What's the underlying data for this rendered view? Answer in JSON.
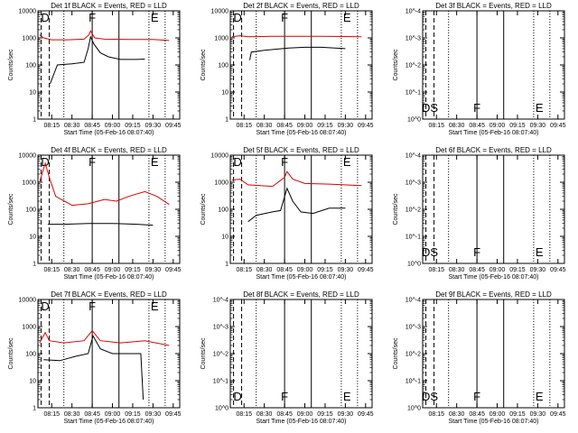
{
  "ylabel": "Counts/sec",
  "xlabel": "Start Time (05-Feb-16 08:07:40)",
  "x_ticks": [
    "08:15",
    "08:30",
    "08:45",
    "09:00",
    "09:15",
    "09:30",
    "09:45"
  ],
  "colors": {
    "events": "#000000",
    "lld": "#dd0000",
    "axis": "#000000"
  },
  "chart_data": [
    {
      "type": "line",
      "title": "Det 1f BLACK = Events, RED = LLD",
      "yticks": [
        "1",
        "10",
        "100",
        "1000",
        "10000"
      ],
      "ylim": [
        1,
        10000
      ],
      "yscale": "log",
      "flags": [
        "D",
        "F",
        "E"
      ],
      "events": [
        [
          8.23,
          20
        ],
        [
          8.32,
          100
        ],
        [
          8.5,
          110
        ],
        [
          8.65,
          125
        ],
        [
          8.7,
          400
        ],
        [
          8.73,
          1100
        ],
        [
          8.77,
          600
        ],
        [
          8.85,
          280
        ],
        [
          8.95,
          200
        ],
        [
          9.1,
          160
        ],
        [
          9.3,
          160
        ],
        [
          9.4,
          165
        ]
      ],
      "lld": [
        [
          8.1,
          1300
        ],
        [
          8.15,
          1000
        ],
        [
          8.25,
          850
        ],
        [
          8.45,
          850
        ],
        [
          8.65,
          900
        ],
        [
          8.71,
          1300
        ],
        [
          8.73,
          1800
        ],
        [
          8.78,
          1000
        ],
        [
          8.9,
          900
        ],
        [
          9.2,
          880
        ],
        [
          9.5,
          880
        ],
        [
          9.7,
          800
        ]
      ]
    },
    {
      "type": "line",
      "title": "Det 2f BLACK = Events, RED = LLD",
      "yticks": [
        "1",
        "10",
        "100",
        "1000",
        "10000"
      ],
      "ylim": [
        1,
        10000
      ],
      "yscale": "log",
      "flags": [
        "D",
        "F",
        "E"
      ],
      "events": [
        [
          8.32,
          150
        ],
        [
          8.34,
          300
        ],
        [
          8.5,
          350
        ],
        [
          8.8,
          420
        ],
        [
          9.0,
          450
        ],
        [
          9.2,
          450
        ],
        [
          9.5,
          400
        ]
      ],
      "lld": [
        [
          8.1,
          1100
        ],
        [
          8.2,
          1200
        ],
        [
          8.3,
          1100
        ],
        [
          8.6,
          1150
        ],
        [
          8.9,
          1150
        ],
        [
          9.2,
          1150
        ],
        [
          9.7,
          1100
        ]
      ]
    },
    {
      "type": "line",
      "title": "Det 3f BLACK = Events, RED = LLD",
      "yticks": [
        "10^0",
        "10^-1",
        "10^-2",
        "10^-3",
        "10^-4"
      ],
      "ylim": [
        0.0001,
        1
      ],
      "yscale": "log",
      "flags": [
        "DS",
        "F",
        "E"
      ],
      "events": [],
      "lld": []
    },
    {
      "type": "line",
      "title": "Det 4f BLACK = Events, RED = LLD",
      "yticks": [
        "1",
        "10",
        "100",
        "1000",
        "10000"
      ],
      "ylim": [
        1,
        10000
      ],
      "yscale": "log",
      "flags": [
        "D",
        "F",
        "E"
      ],
      "events": [
        [
          8.2,
          28
        ],
        [
          8.4,
          28
        ],
        [
          8.7,
          30
        ],
        [
          9.0,
          30
        ],
        [
          9.3,
          28
        ],
        [
          9.5,
          26
        ]
      ],
      "lld": [
        [
          8.1,
          1000
        ],
        [
          8.17,
          5000
        ],
        [
          8.22,
          1500
        ],
        [
          8.3,
          300
        ],
        [
          8.5,
          140
        ],
        [
          8.7,
          160
        ],
        [
          8.9,
          230
        ],
        [
          9.05,
          200
        ],
        [
          9.2,
          300
        ],
        [
          9.4,
          450
        ],
        [
          9.55,
          300
        ],
        [
          9.7,
          150
        ]
      ]
    },
    {
      "type": "line",
      "title": "Det 5f BLACK = Events, RED = LLD",
      "yticks": [
        "1",
        "10",
        "100",
        "1000",
        "10000"
      ],
      "ylim": [
        1,
        10000
      ],
      "yscale": "log",
      "flags": [
        "D",
        "F",
        "E"
      ],
      "events": [
        [
          8.3,
          35
        ],
        [
          8.4,
          60
        ],
        [
          8.6,
          80
        ],
        [
          8.7,
          90
        ],
        [
          8.78,
          600
        ],
        [
          8.85,
          200
        ],
        [
          8.95,
          80
        ],
        [
          9.1,
          70
        ],
        [
          9.3,
          110
        ],
        [
          9.5,
          110
        ]
      ],
      "lld": [
        [
          8.1,
          1200
        ],
        [
          8.2,
          1300
        ],
        [
          8.3,
          800
        ],
        [
          8.6,
          700
        ],
        [
          8.75,
          1500
        ],
        [
          8.78,
          2500
        ],
        [
          8.85,
          1300
        ],
        [
          9.0,
          900
        ],
        [
          9.3,
          850
        ],
        [
          9.7,
          750
        ]
      ]
    },
    {
      "type": "line",
      "title": "Det 6f BLACK = Events, RED = LLD",
      "yticks": [
        "10^0",
        "10^-1",
        "10^-2",
        "10^-3",
        "10^-4"
      ],
      "ylim": [
        0.0001,
        1
      ],
      "yscale": "log",
      "flags": [
        "DS",
        "F",
        "E"
      ],
      "events": [],
      "lld": []
    },
    {
      "type": "line",
      "title": "Det 7f BLACK = Events, RED = LLD",
      "yticks": [
        "1",
        "10",
        "100",
        "1000",
        "10000"
      ],
      "ylim": [
        1,
        10000
      ],
      "yscale": "log",
      "flags": [
        "D",
        "F",
        "E"
      ],
      "events": [
        [
          8.15,
          60
        ],
        [
          8.35,
          55
        ],
        [
          8.55,
          80
        ],
        [
          8.7,
          100
        ],
        [
          8.76,
          450
        ],
        [
          8.85,
          150
        ],
        [
          9.0,
          100
        ],
        [
          9.15,
          100
        ],
        [
          9.35,
          100
        ],
        [
          9.38,
          2
        ]
      ],
      "lld": [
        [
          8.1,
          250
        ],
        [
          8.17,
          600
        ],
        [
          8.22,
          300
        ],
        [
          8.4,
          250
        ],
        [
          8.65,
          300
        ],
        [
          8.75,
          700
        ],
        [
          8.85,
          300
        ],
        [
          9.1,
          250
        ],
        [
          9.4,
          300
        ],
        [
          9.7,
          200
        ]
      ]
    },
    {
      "type": "line",
      "title": "Det 8f BLACK = Events, RED = LLD",
      "yticks": [
        "10^0",
        "10^-1",
        "10^-2",
        "10^-3",
        "10^-4"
      ],
      "ylim": [
        0.0001,
        1
      ],
      "yscale": "log",
      "flags": [
        "D",
        "F",
        "E"
      ],
      "events": [],
      "lld": []
    },
    {
      "type": "line",
      "title": "Det 9f BLACK = Events, RED = LLD",
      "yticks": [
        "10^0",
        "10^-1",
        "10^-2",
        "10^-3",
        "10^-4"
      ],
      "ylim": [
        0.0001,
        1
      ],
      "yscale": "log",
      "flags": [
        "DS",
        "F",
        "E"
      ],
      "events": [],
      "lld": []
    }
  ]
}
